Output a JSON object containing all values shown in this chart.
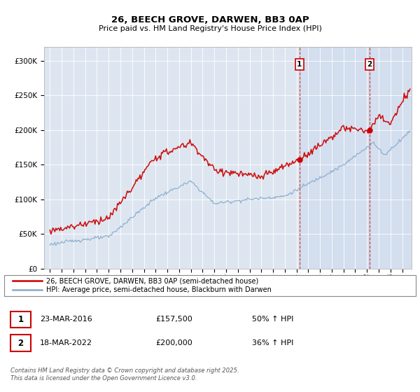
{
  "title": "26, BEECH GROVE, DARWEN, BB3 0AP",
  "subtitle": "Price paid vs. HM Land Registry's House Price Index (HPI)",
  "legend_line1": "26, BEECH GROVE, DARWEN, BB3 0AP (semi-detached house)",
  "legend_line2": "HPI: Average price, semi-detached house, Blackburn with Darwen",
  "sale1_label": "1",
  "sale1_date": "23-MAR-2016",
  "sale1_price": "£157,500",
  "sale1_hpi": "50% ↑ HPI",
  "sale2_label": "2",
  "sale2_date": "18-MAR-2022",
  "sale2_price": "£200,000",
  "sale2_hpi": "36% ↑ HPI",
  "footer": "Contains HM Land Registry data © Crown copyright and database right 2025.\nThis data is licensed under the Open Government Licence v3.0.",
  "red_color": "#cc0000",
  "blue_color": "#88aacc",
  "sale1_vline_x": 2016.25,
  "sale2_vline_x": 2022.22,
  "sale1_marker_price": 157500,
  "sale2_marker_price": 200000,
  "ylim_min": 0,
  "ylim_max": 320000,
  "xlim_min": 1994.5,
  "xlim_max": 2025.8,
  "background_color": "#dde6f0",
  "background_color_highlight": "#ccd9ee"
}
